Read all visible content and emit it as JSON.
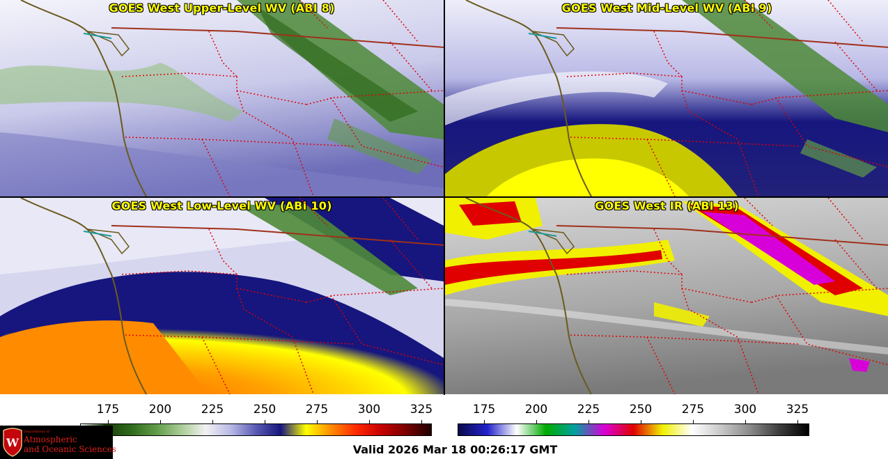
{
  "panels": [
    {
      "title": "GOES West Upper-Level WV (ABI 8)",
      "style": "wv-upper"
    },
    {
      "title": "GOES West Mid-Level WV (ABI 9)",
      "style": "wv-mid"
    },
    {
      "title": "GOES West Low-Level WV (ABI 10)",
      "style": "wv-low"
    },
    {
      "title": "GOES West IR (ABI 13)",
      "style": "ir"
    }
  ],
  "colorbars": {
    "wv": {
      "ticks": [
        "175",
        "200",
        "225",
        "250",
        "275",
        "300",
        "325"
      ],
      "colors": [
        "#ffffff",
        "#1a3d0a",
        "#2f6a1c",
        "#5f9a48",
        "#a9cc95",
        "#f2f2f2",
        "#b8b8e6",
        "#5a5ab4",
        "#16167e",
        "#ffff00",
        "#ff8c00",
        "#ff2a00",
        "#c80000",
        "#7a0000",
        "#200000"
      ]
    },
    "ir": {
      "ticks": [
        "175",
        "200",
        "225",
        "250",
        "275",
        "300",
        "325"
      ],
      "colors": [
        "#0a0a4a",
        "#2222cc",
        "#ffffff",
        "#00aa00",
        "#00a0a0",
        "#d800d8",
        "#e00000",
        "#f0f000",
        "#ffffff",
        "#c8c8c8",
        "#8a8a8a",
        "#3c3c3c",
        "#000000"
      ]
    }
  },
  "logo": {
    "line1": "Department of",
    "line2": "Atmospheric",
    "line3": "and Oceanic Sciences",
    "crest_letter": "W"
  },
  "valid_text": "Valid 2026 Mar 18 00:26:17 GMT",
  "colors": {
    "coastline": "#6b5a1e",
    "state_border": "#e00000",
    "title_text": "#ffff00"
  }
}
